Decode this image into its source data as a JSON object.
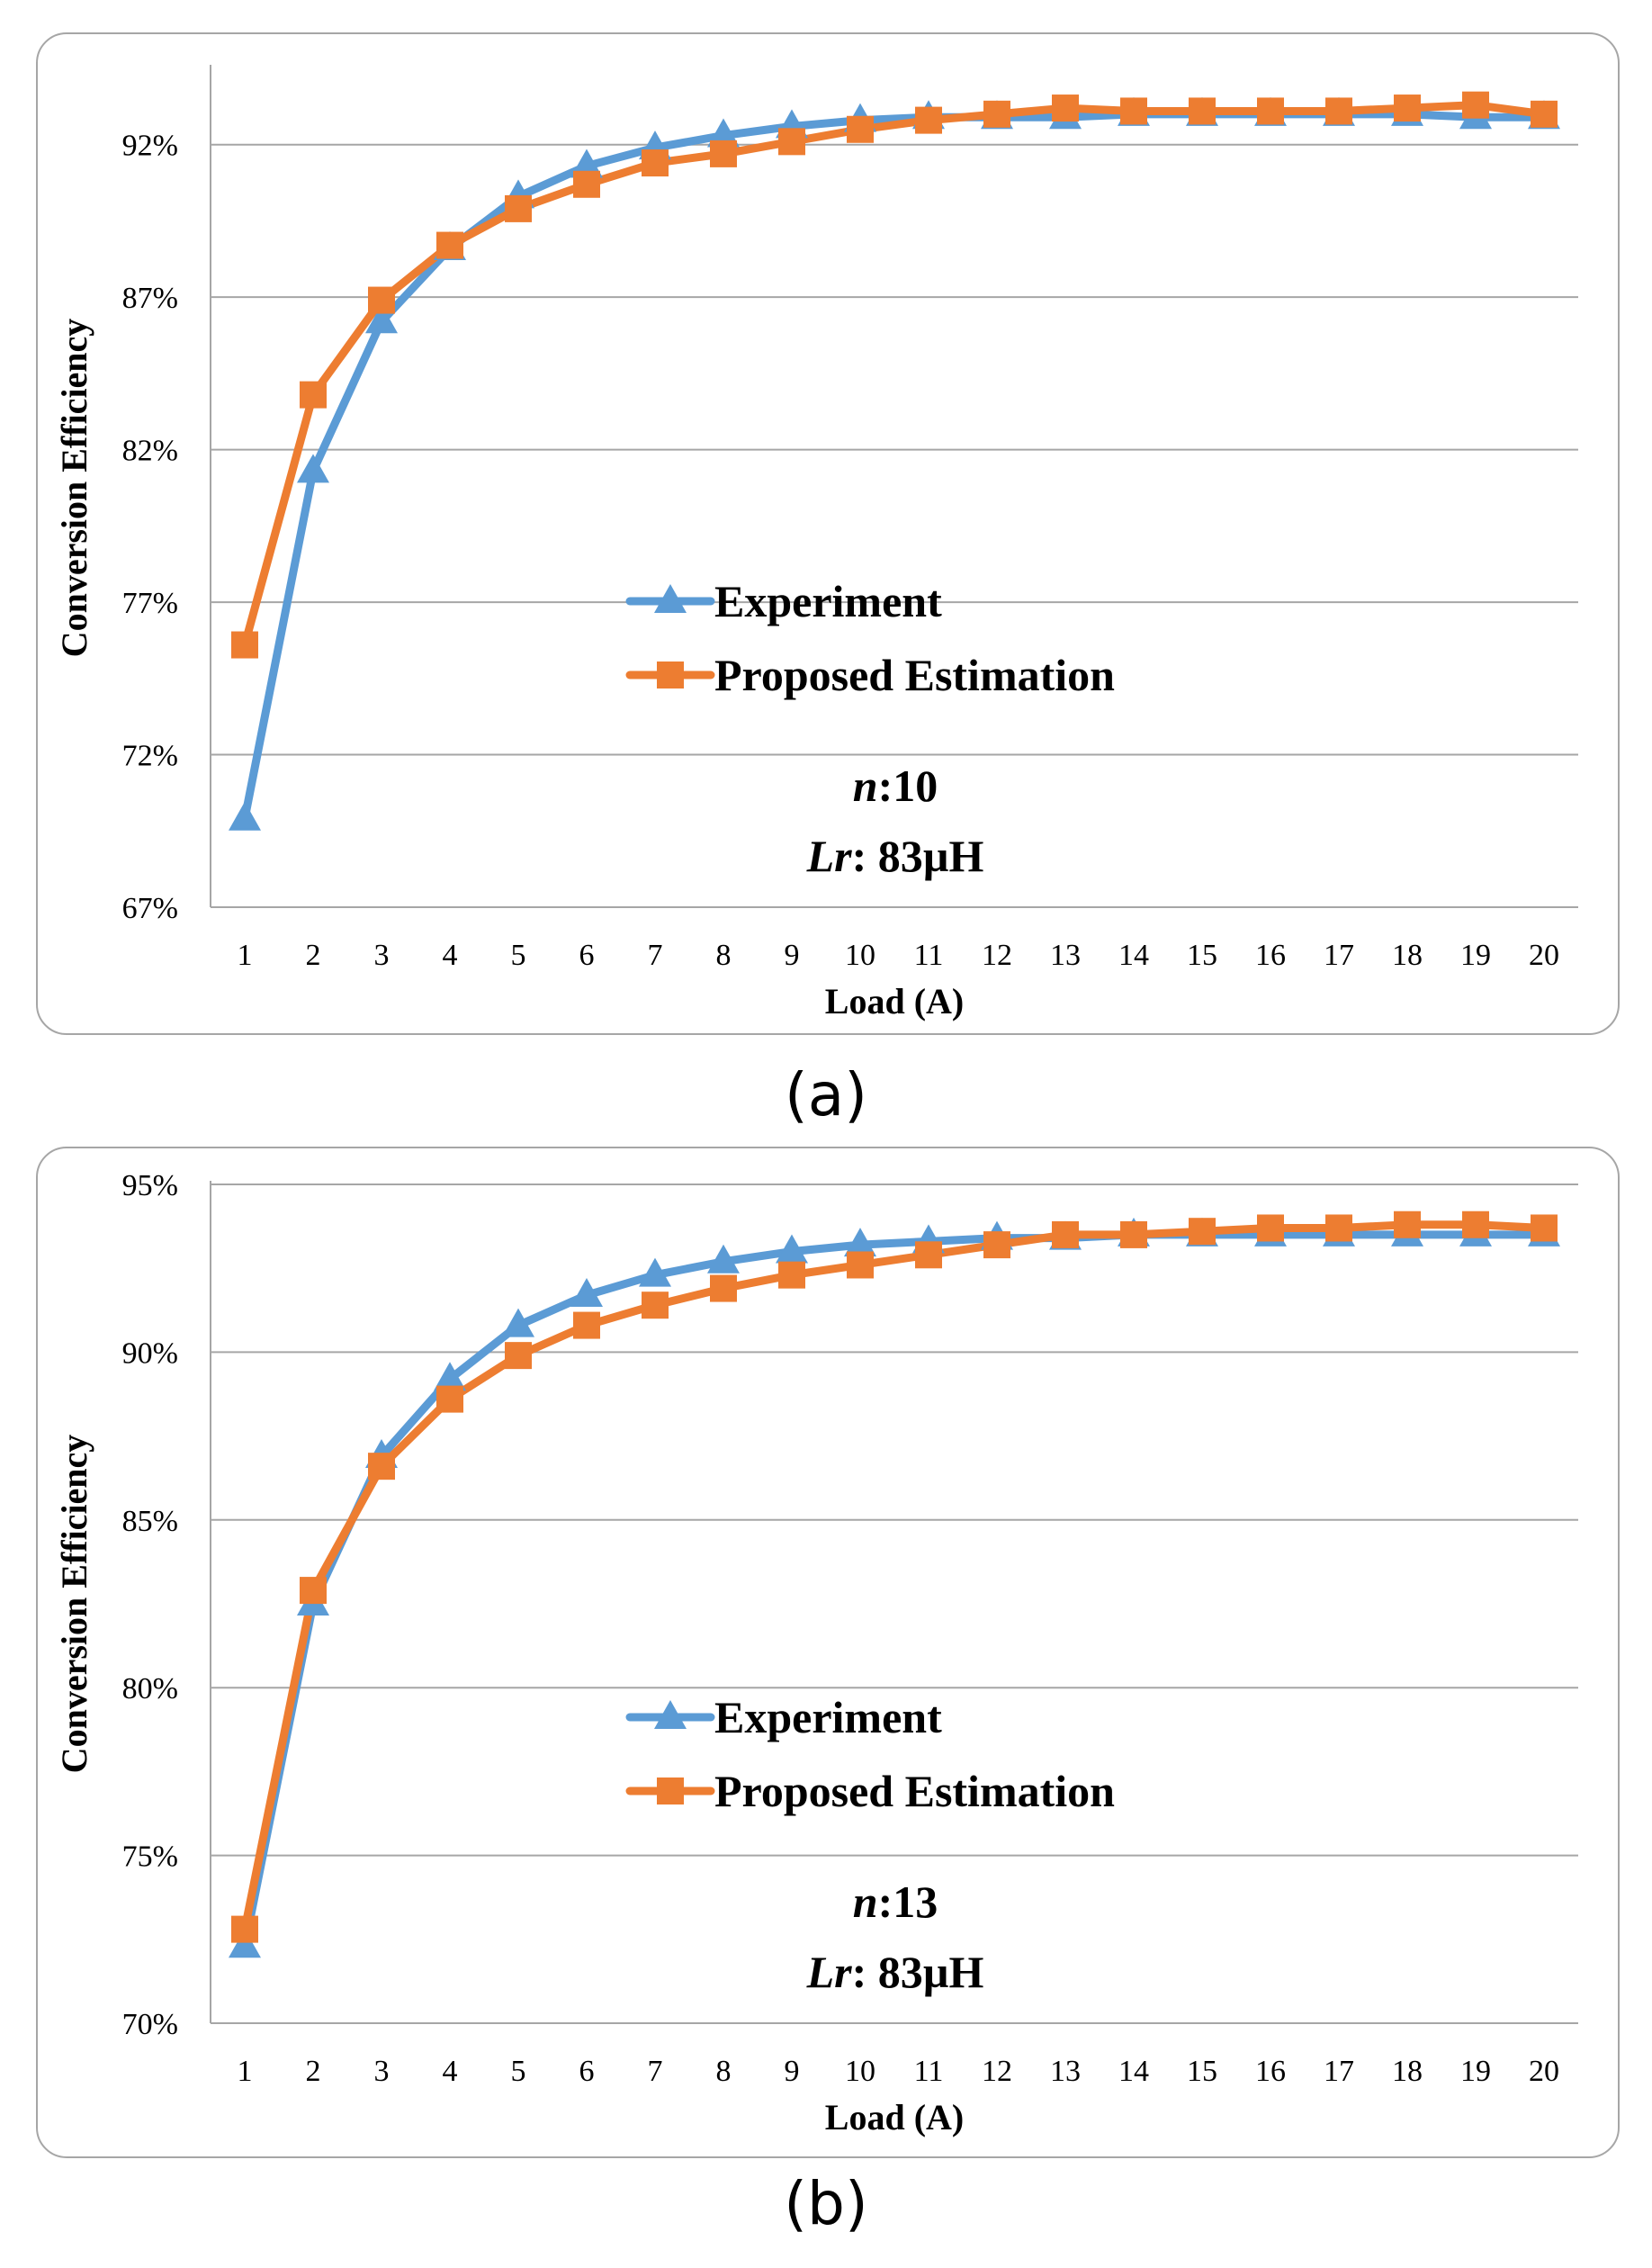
{
  "panel_labels": [
    "(a)",
    "(b)"
  ],
  "colors": {
    "experiment": "#5b9bd5",
    "estimation": "#ed7d31",
    "grid": "#a6a6a6"
  },
  "chart_data": [
    {
      "type": "line",
      "panel": "(a)",
      "title": "",
      "xlabel": "Load (A)",
      "ylabel": "Conversion Efficiency",
      "categories": [
        "1",
        "2",
        "3",
        "4",
        "5",
        "6",
        "7",
        "8",
        "9",
        "10",
        "11",
        "12",
        "13",
        "14",
        "15",
        "16",
        "17",
        "18",
        "19",
        "20"
      ],
      "yticks": [
        "67%",
        "72%",
        "77%",
        "82%",
        "87%",
        "92%"
      ],
      "ylim": [
        67,
        94.5
      ],
      "grid": true,
      "legend_position": "center",
      "annotation": {
        "n_label": "n",
        "n_value": ":10",
        "lr_label": "Lr",
        "lr_value": ": 83µH"
      },
      "series": [
        {
          "name": "Experiment",
          "marker": "triangle",
          "values": [
            69.9,
            81.3,
            86.2,
            88.6,
            90.3,
            91.3,
            91.9,
            92.3,
            92.6,
            92.8,
            92.9,
            92.9,
            92.9,
            93.0,
            93.0,
            93.0,
            93.0,
            93.0,
            92.9,
            92.9
          ]
        },
        {
          "name": "Proposed Estimation",
          "marker": "square",
          "values": [
            75.6,
            83.8,
            86.9,
            88.7,
            89.9,
            90.7,
            91.4,
            91.7,
            92.1,
            92.5,
            92.8,
            93.0,
            93.2,
            93.1,
            93.1,
            93.1,
            93.1,
            93.2,
            93.3,
            93.0
          ]
        }
      ]
    },
    {
      "type": "line",
      "panel": "(b)",
      "title": "",
      "xlabel": "Load (A)",
      "ylabel": "Conversion Efficiency",
      "categories": [
        "1",
        "2",
        "3",
        "4",
        "5",
        "6",
        "7",
        "8",
        "9",
        "10",
        "11",
        "12",
        "13",
        "14",
        "15",
        "16",
        "17",
        "18",
        "19",
        "20"
      ],
      "yticks": [
        "70%",
        "75%",
        "80%",
        "85%",
        "90%",
        "95%"
      ],
      "ylim": [
        70,
        95
      ],
      "grid": true,
      "legend_position": "center",
      "annotation": {
        "n_label": "n",
        "n_value": ":13",
        "lr_label": "Lr",
        "lr_value": ": 83µH"
      },
      "series": [
        {
          "name": "Experiment",
          "marker": "triangle",
          "values": [
            72.3,
            82.5,
            86.9,
            89.2,
            90.8,
            91.7,
            92.3,
            92.7,
            93.0,
            93.2,
            93.3,
            93.4,
            93.4,
            93.5,
            93.5,
            93.5,
            93.5,
            93.5,
            93.5,
            93.5
          ]
        },
        {
          "name": "Proposed Estimation",
          "marker": "square",
          "values": [
            72.8,
            82.9,
            86.6,
            88.6,
            89.9,
            90.8,
            91.4,
            91.9,
            92.3,
            92.6,
            92.9,
            93.2,
            93.5,
            93.5,
            93.6,
            93.7,
            93.7,
            93.8,
            93.8,
            93.7
          ]
        }
      ]
    }
  ]
}
